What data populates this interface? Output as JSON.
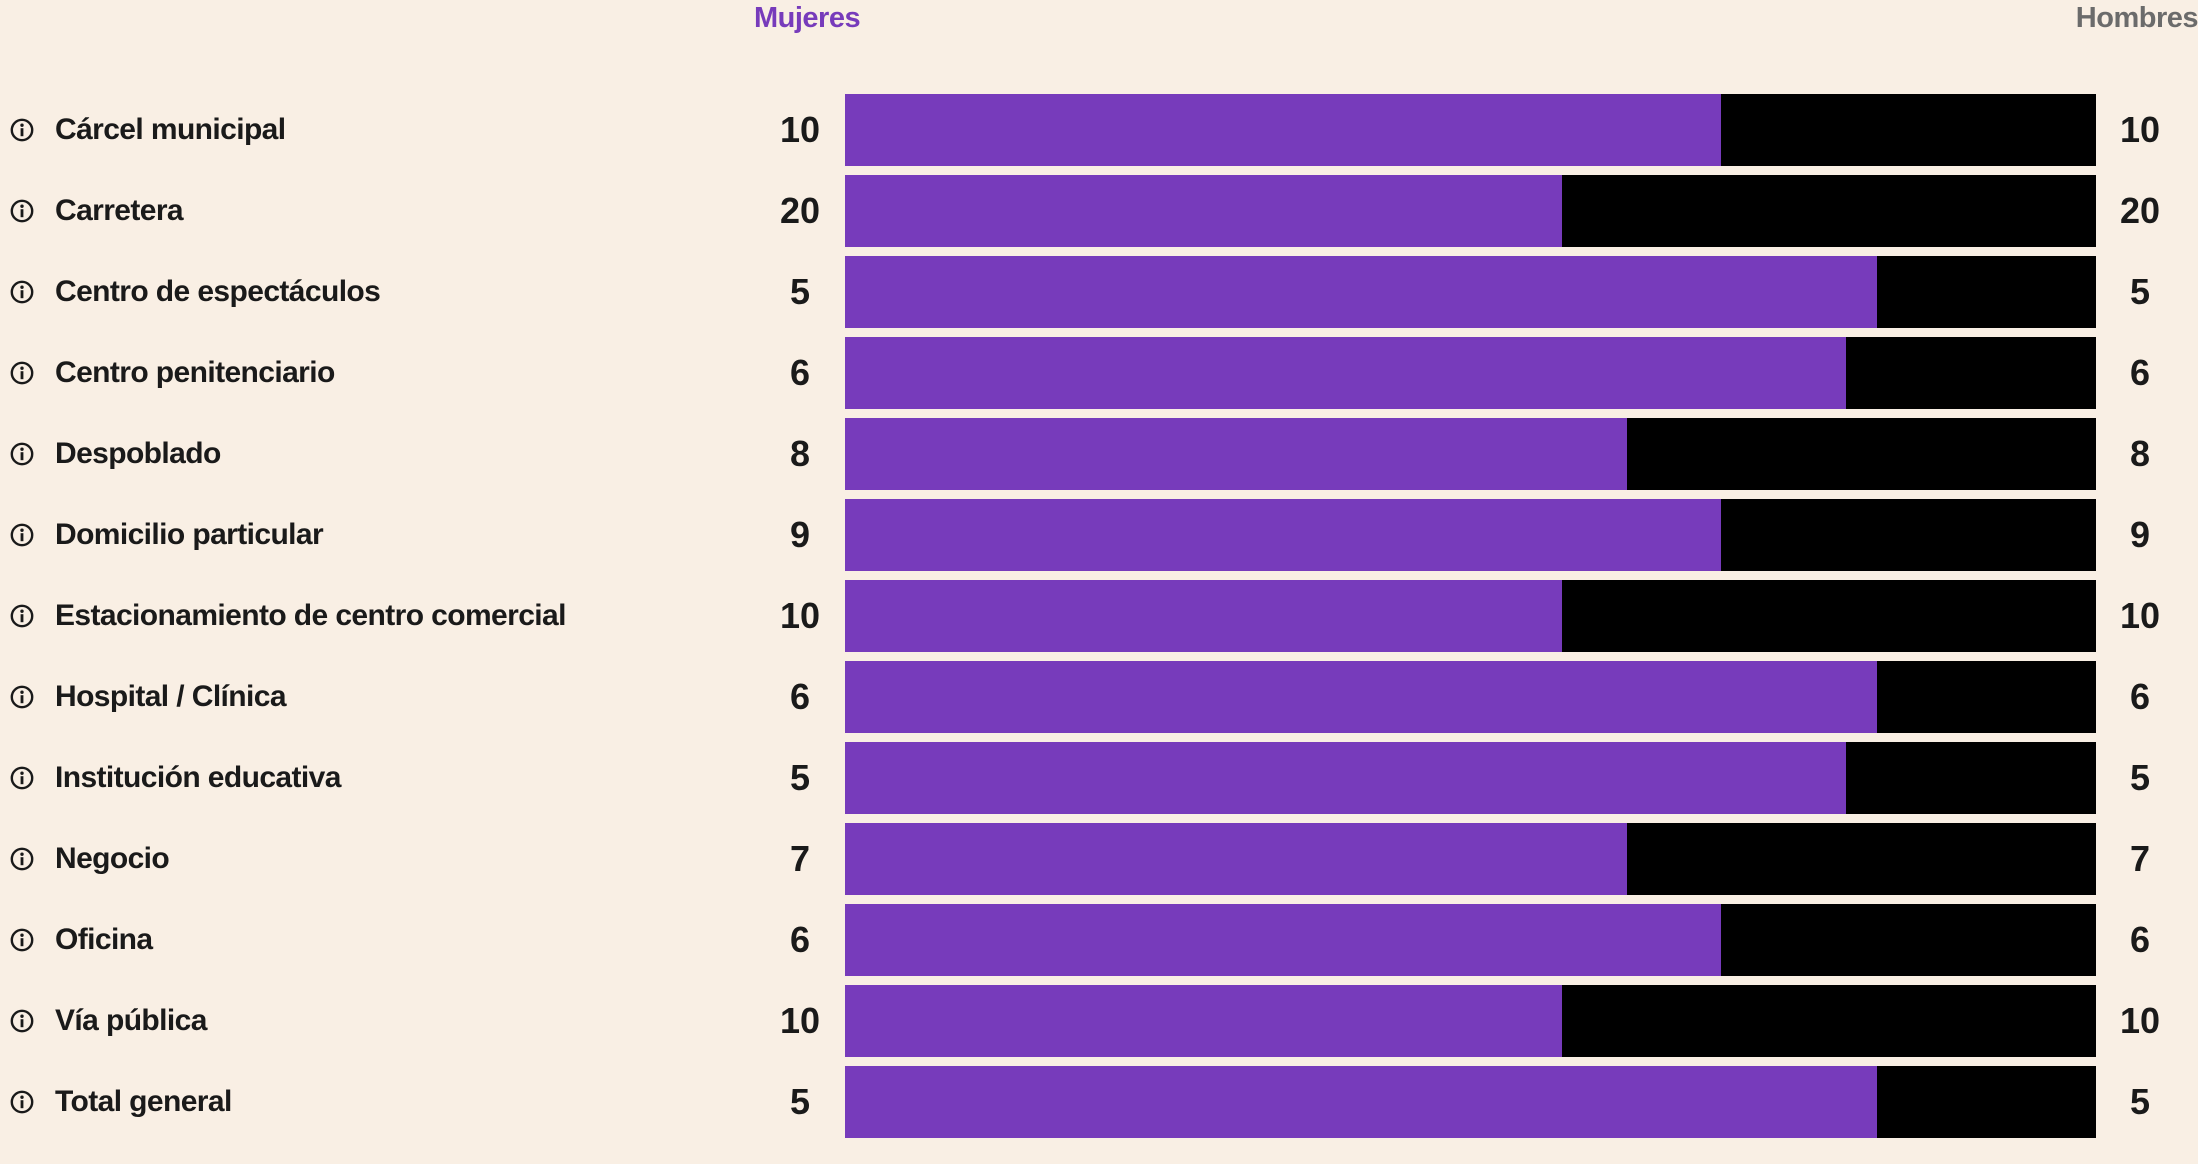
{
  "colors": {
    "background": "#f9efe4",
    "mujeres": "#773bbb",
    "hombres": "#000000",
    "legend_hombres_text": "#6b6b6b",
    "icon": "#1a1a1a"
  },
  "legend": {
    "left": "Mujeres",
    "right": "Hombres"
  },
  "row_icon": "info-circle-icon",
  "chart_data": {
    "type": "bar",
    "orientation": "horizontal",
    "stacked": "100%",
    "categories": [
      "Cárcel municipal",
      "Carretera",
      "Centro de espectáculos",
      "Centro penitenciario",
      "Despoblado",
      "Domicilio particular",
      "Estacionamiento de centro comercial",
      "Hospital / Clínica",
      "Institución educativa",
      "Negocio",
      "Oficina",
      "Vía pública",
      "Total general"
    ],
    "series": [
      {
        "name": "Mujeres",
        "values": [
          10,
          20,
          5,
          6,
          8,
          9,
          10,
          6,
          5,
          7,
          6,
          10,
          5
        ],
        "share": [
          0.7,
          0.573,
          0.825,
          0.8,
          0.625,
          0.7,
          0.573,
          0.825,
          0.8,
          0.625,
          0.7,
          0.573,
          0.825
        ]
      },
      {
        "name": "Hombres",
        "values": [
          10,
          20,
          5,
          6,
          8,
          9,
          10,
          6,
          5,
          7,
          6,
          10,
          5
        ],
        "share": [
          0.3,
          0.427,
          0.175,
          0.2,
          0.375,
          0.3,
          0.427,
          0.175,
          0.2,
          0.375,
          0.3,
          0.427,
          0.175
        ]
      }
    ],
    "legend_position": "top"
  }
}
